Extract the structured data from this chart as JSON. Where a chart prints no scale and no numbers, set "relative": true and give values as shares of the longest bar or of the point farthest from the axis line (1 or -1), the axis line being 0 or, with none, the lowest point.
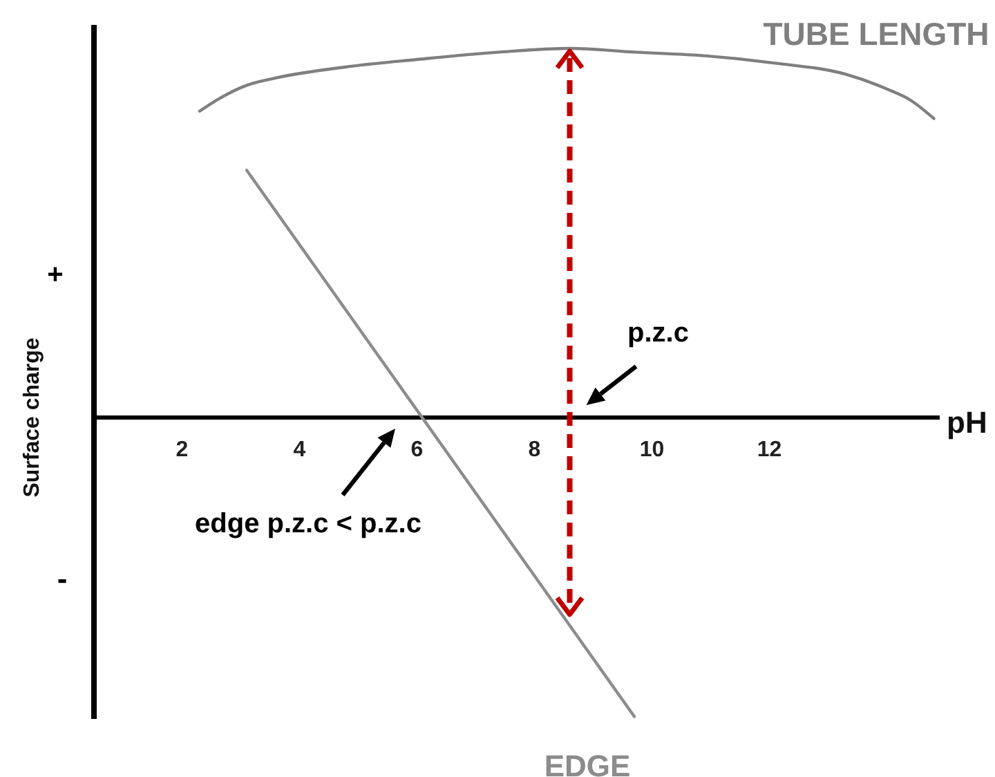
{
  "chart_data": {
    "type": "line",
    "relative": true,
    "xlabel": "pH",
    "ylabel": "Surface charge",
    "xlim": [
      0.5,
      14.9
    ],
    "xticks": [
      2,
      4,
      6,
      8,
      10,
      12
    ],
    "series": [
      {
        "name": "TUBE LENGTH",
        "color": "#7f7f7f",
        "x": [
          2.3,
          2.7,
          3.1,
          3.6,
          4.8,
          6.0,
          7.4,
          8.6,
          9.7,
          10.9,
          12.1,
          13.3,
          14.0,
          14.4,
          14.8
        ],
        "values": [
          0.83,
          0.87,
          0.9,
          0.92,
          0.95,
          0.97,
          0.99,
          1,
          0.99,
          0.98,
          0.96,
          0.93,
          0.89,
          0.86,
          0.81
        ]
      },
      {
        "name": "EDGE",
        "color": "#8c8c8c",
        "x": [
          3.1,
          9.7
        ],
        "values": [
          0.67,
          -0.81
        ]
      }
    ],
    "ref_lines": [
      {
        "axis": "x",
        "value": 8.6,
        "label": "p.z.c",
        "color": "#c00000",
        "line_style": "dashed"
      }
    ],
    "annotations": [
      "+",
      "-",
      "edge p.z.c < p.z.c"
    ]
  }
}
